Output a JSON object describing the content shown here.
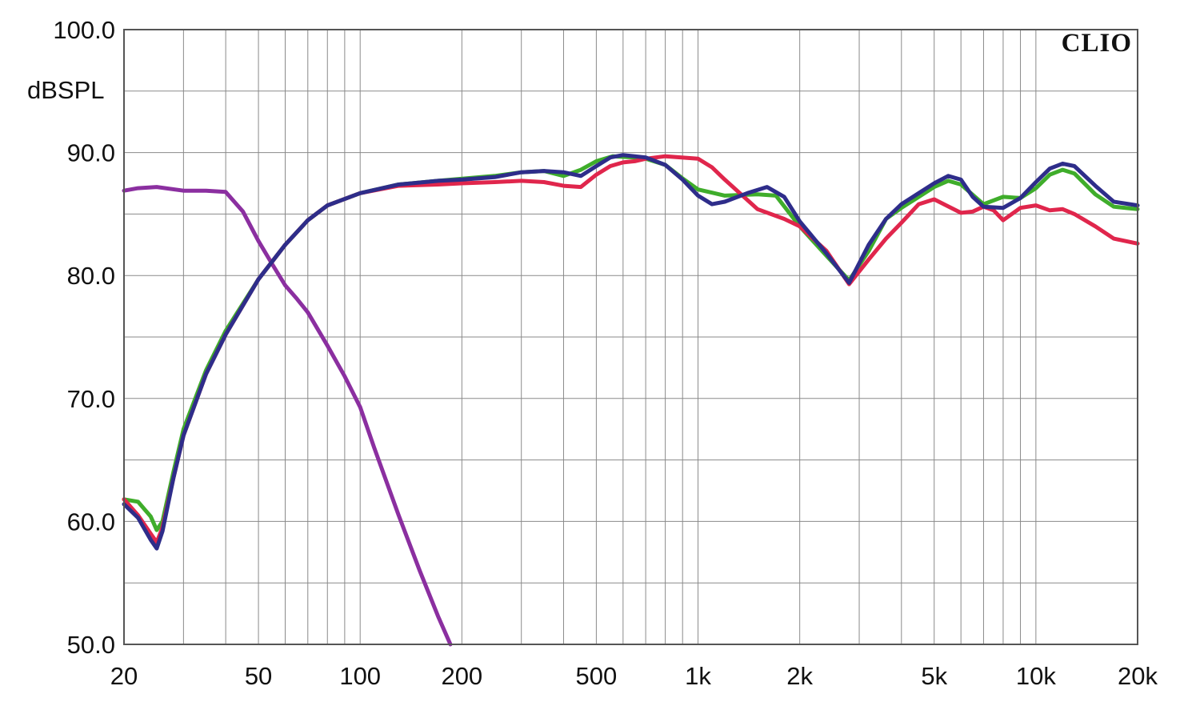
{
  "chart_data": {
    "type": "line",
    "title": "",
    "brand": "CLIO",
    "ylabel": "dBSPL",
    "xlabel": "",
    "x_scale": "log",
    "xlim": [
      20,
      20000
    ],
    "ylim": [
      50,
      100
    ],
    "grid": true,
    "x_ticks": [
      {
        "value": 20,
        "label": "20"
      },
      {
        "value": 50,
        "label": "50"
      },
      {
        "value": 100,
        "label": "100"
      },
      {
        "value": 200,
        "label": "200"
      },
      {
        "value": 500,
        "label": "500"
      },
      {
        "value": 1000,
        "label": "1k"
      },
      {
        "value": 2000,
        "label": "2k"
      },
      {
        "value": 5000,
        "label": "5k"
      },
      {
        "value": 10000,
        "label": "10k"
      },
      {
        "value": 20000,
        "label": "20k"
      }
    ],
    "y_ticks": [
      {
        "value": 100,
        "label": "100.0"
      },
      {
        "value": 90,
        "label": "90.0"
      },
      {
        "value": 80,
        "label": "80.0"
      },
      {
        "value": 70,
        "label": "70.0"
      },
      {
        "value": 60,
        "label": "60.0"
      },
      {
        "value": 50,
        "label": "50.0"
      }
    ],
    "series": [
      {
        "color": "#8b2fa0",
        "points": [
          [
            20,
            86.9
          ],
          [
            22,
            87.1
          ],
          [
            25,
            87.2
          ],
          [
            30,
            86.9
          ],
          [
            35,
            86.9
          ],
          [
            40,
            86.8
          ],
          [
            45,
            85.2
          ],
          [
            50,
            82.8
          ],
          [
            55,
            80.9
          ],
          [
            60,
            79.2
          ],
          [
            65,
            78.1
          ],
          [
            70,
            77.0
          ],
          [
            80,
            74.3
          ],
          [
            90,
            71.8
          ],
          [
            100,
            69.3
          ],
          [
            110,
            66.0
          ],
          [
            130,
            60.5
          ],
          [
            150,
            56.0
          ],
          [
            170,
            52.3
          ],
          [
            185,
            50.0
          ]
        ]
      },
      {
        "color": "#3fad2b",
        "points": [
          [
            20,
            61.8
          ],
          [
            22,
            61.6
          ],
          [
            24,
            60.4
          ],
          [
            25,
            59.3
          ],
          [
            26,
            60.0
          ],
          [
            28,
            64.0
          ],
          [
            30,
            67.5
          ],
          [
            35,
            72.3
          ],
          [
            40,
            75.5
          ],
          [
            50,
            79.7
          ],
          [
            60,
            82.5
          ],
          [
            70,
            84.5
          ],
          [
            80,
            85.7
          ],
          [
            100,
            86.7
          ],
          [
            130,
            87.4
          ],
          [
            170,
            87.7
          ],
          [
            250,
            88.1
          ],
          [
            300,
            88.4
          ],
          [
            350,
            88.5
          ],
          [
            400,
            88.1
          ],
          [
            450,
            88.6
          ],
          [
            500,
            89.3
          ],
          [
            560,
            89.7
          ],
          [
            650,
            89.6
          ],
          [
            700,
            89.5
          ],
          [
            800,
            89.0
          ],
          [
            900,
            87.9
          ],
          [
            1000,
            87.0
          ],
          [
            1200,
            86.5
          ],
          [
            1500,
            86.6
          ],
          [
            1700,
            86.5
          ],
          [
            2000,
            84.0
          ],
          [
            2400,
            81.6
          ],
          [
            2800,
            79.6
          ],
          [
            3200,
            82.0
          ],
          [
            3600,
            84.6
          ],
          [
            4000,
            85.5
          ],
          [
            5000,
            87.2
          ],
          [
            5500,
            87.7
          ],
          [
            6000,
            87.4
          ],
          [
            7000,
            85.8
          ],
          [
            8000,
            86.4
          ],
          [
            9000,
            86.3
          ],
          [
            10000,
            87.1
          ],
          [
            11000,
            88.2
          ],
          [
            12000,
            88.6
          ],
          [
            13000,
            88.3
          ],
          [
            15000,
            86.6
          ],
          [
            17000,
            85.6
          ],
          [
            20000,
            85.4
          ]
        ]
      },
      {
        "color": "#e0264c",
        "points": [
          [
            20,
            61.8
          ],
          [
            22,
            60.5
          ],
          [
            24,
            59.0
          ],
          [
            25,
            58.3
          ],
          [
            26,
            59.5
          ],
          [
            28,
            63.5
          ],
          [
            30,
            67.0
          ],
          [
            35,
            72.0
          ],
          [
            40,
            75.2
          ],
          [
            50,
            79.7
          ],
          [
            60,
            82.5
          ],
          [
            70,
            84.5
          ],
          [
            80,
            85.7
          ],
          [
            100,
            86.7
          ],
          [
            130,
            87.3
          ],
          [
            170,
            87.4
          ],
          [
            200,
            87.5
          ],
          [
            250,
            87.6
          ],
          [
            300,
            87.7
          ],
          [
            350,
            87.6
          ],
          [
            400,
            87.3
          ],
          [
            450,
            87.2
          ],
          [
            500,
            88.2
          ],
          [
            550,
            88.9
          ],
          [
            600,
            89.2
          ],
          [
            650,
            89.3
          ],
          [
            700,
            89.5
          ],
          [
            800,
            89.7
          ],
          [
            1000,
            89.5
          ],
          [
            1100,
            88.8
          ],
          [
            1200,
            87.8
          ],
          [
            1500,
            85.4
          ],
          [
            1800,
            84.6
          ],
          [
            2000,
            84.0
          ],
          [
            2400,
            82.0
          ],
          [
            2800,
            79.3
          ],
          [
            3200,
            81.3
          ],
          [
            3600,
            83.0
          ],
          [
            4000,
            84.3
          ],
          [
            4500,
            85.8
          ],
          [
            5000,
            86.2
          ],
          [
            6000,
            85.1
          ],
          [
            6500,
            85.2
          ],
          [
            7000,
            85.6
          ],
          [
            7500,
            85.3
          ],
          [
            8000,
            84.5
          ],
          [
            9000,
            85.5
          ],
          [
            10000,
            85.7
          ],
          [
            11000,
            85.3
          ],
          [
            12000,
            85.4
          ],
          [
            13000,
            85.0
          ],
          [
            15000,
            84.0
          ],
          [
            17000,
            83.0
          ],
          [
            20000,
            82.6
          ]
        ]
      },
      {
        "color": "#2e2d8a",
        "points": [
          [
            20,
            61.4
          ],
          [
            22,
            60.3
          ],
          [
            24,
            58.5
          ],
          [
            25,
            57.8
          ],
          [
            26,
            59.2
          ],
          [
            28,
            63.5
          ],
          [
            30,
            67.0
          ],
          [
            35,
            72.0
          ],
          [
            40,
            75.2
          ],
          [
            50,
            79.7
          ],
          [
            60,
            82.5
          ],
          [
            70,
            84.5
          ],
          [
            80,
            85.7
          ],
          [
            100,
            86.7
          ],
          [
            130,
            87.4
          ],
          [
            170,
            87.7
          ],
          [
            200,
            87.8
          ],
          [
            250,
            88.0
          ],
          [
            300,
            88.4
          ],
          [
            350,
            88.5
          ],
          [
            400,
            88.4
          ],
          [
            450,
            88.1
          ],
          [
            500,
            88.9
          ],
          [
            550,
            89.6
          ],
          [
            600,
            89.8
          ],
          [
            700,
            89.6
          ],
          [
            800,
            89.0
          ],
          [
            900,
            87.8
          ],
          [
            1000,
            86.5
          ],
          [
            1100,
            85.8
          ],
          [
            1200,
            86.0
          ],
          [
            1400,
            86.7
          ],
          [
            1600,
            87.2
          ],
          [
            1800,
            86.4
          ],
          [
            2000,
            84.4
          ],
          [
            2400,
            81.8
          ],
          [
            2800,
            79.4
          ],
          [
            3200,
            82.5
          ],
          [
            3600,
            84.6
          ],
          [
            4000,
            85.8
          ],
          [
            5000,
            87.5
          ],
          [
            5500,
            88.1
          ],
          [
            6000,
            87.8
          ],
          [
            6500,
            86.4
          ],
          [
            7000,
            85.6
          ],
          [
            8000,
            85.5
          ],
          [
            9000,
            86.3
          ],
          [
            10000,
            87.6
          ],
          [
            11000,
            88.7
          ],
          [
            12000,
            89.1
          ],
          [
            13000,
            88.9
          ],
          [
            15000,
            87.3
          ],
          [
            17000,
            86.0
          ],
          [
            20000,
            85.7
          ]
        ]
      }
    ]
  }
}
